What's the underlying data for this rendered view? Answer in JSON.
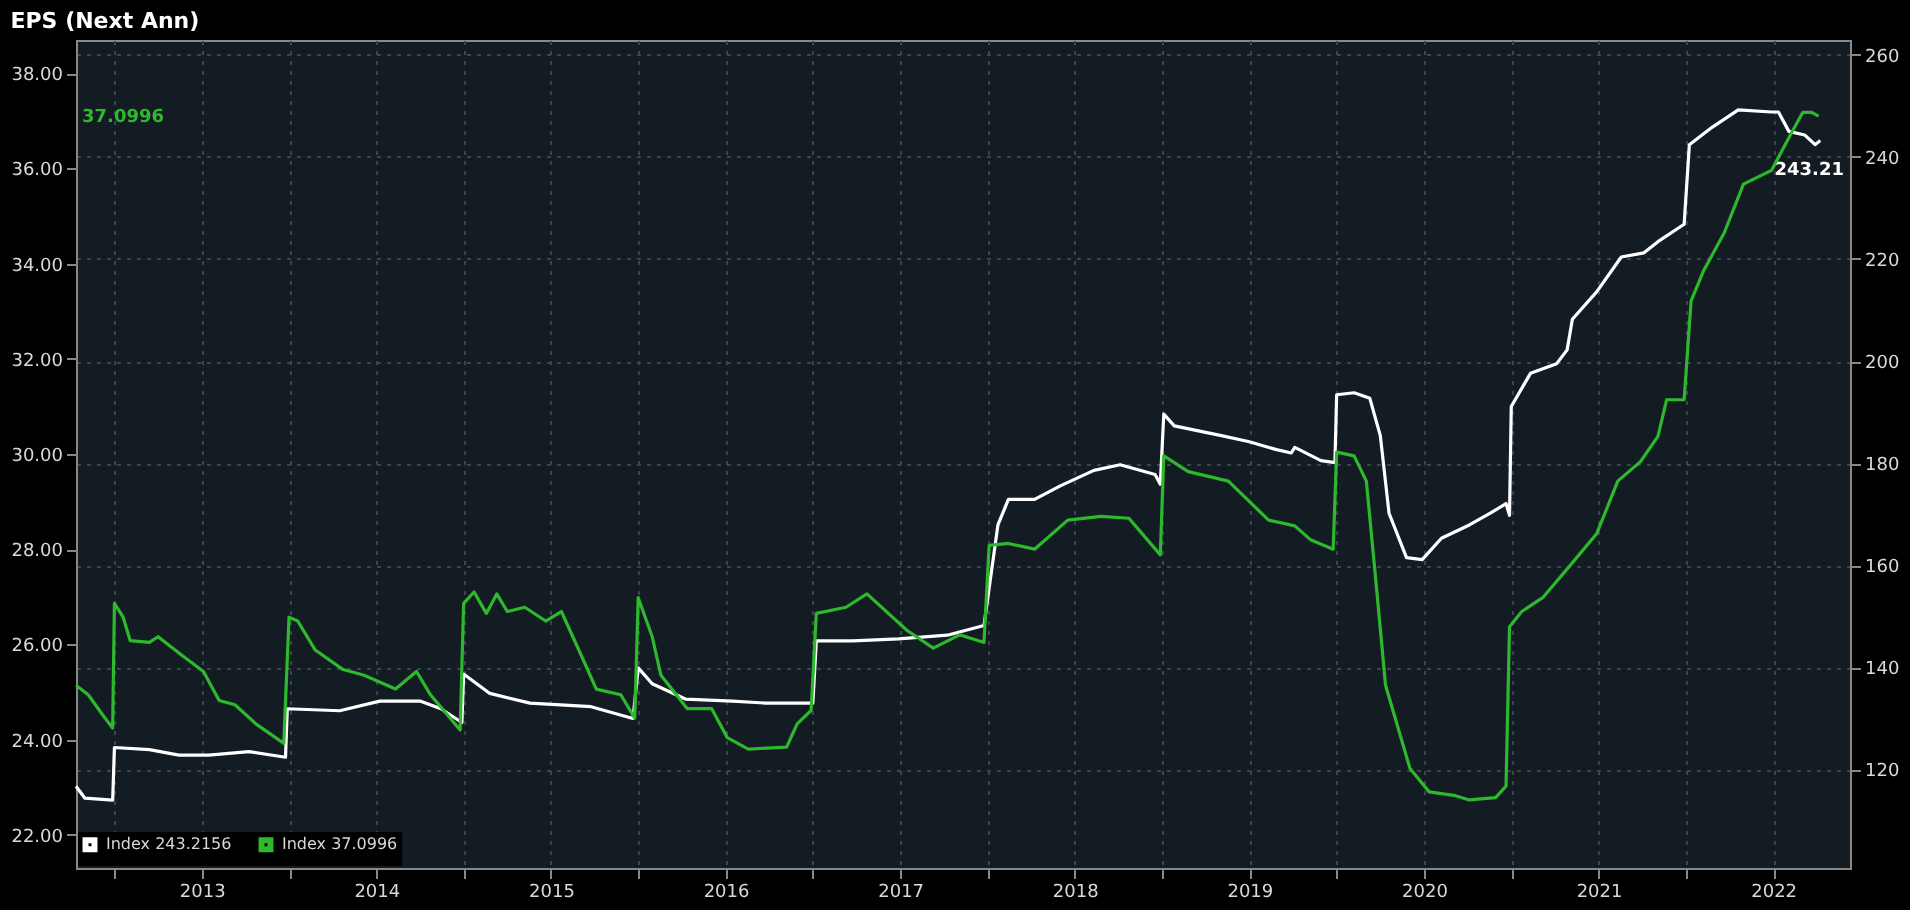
{
  "chart_data": {
    "type": "line",
    "title": "EPS (Next Ann)",
    "xlim": [
      2012.78,
      2022.94
    ],
    "xticks": [
      {
        "value": 2013,
        "label": null
      },
      {
        "value": 2013.5,
        "label": "2013"
      },
      {
        "value": 2014,
        "label": null
      },
      {
        "value": 2014.5,
        "label": "2014"
      },
      {
        "value": 2015,
        "label": null
      },
      {
        "value": 2015.5,
        "label": "2015"
      },
      {
        "value": 2016,
        "label": null
      },
      {
        "value": 2016.5,
        "label": "2016"
      },
      {
        "value": 2017,
        "label": null
      },
      {
        "value": 2017.5,
        "label": "2017"
      },
      {
        "value": 2018,
        "label": null
      },
      {
        "value": 2018.5,
        "label": "2018"
      },
      {
        "value": 2019,
        "label": null
      },
      {
        "value": 2019.5,
        "label": "2019"
      },
      {
        "value": 2020,
        "label": null
      },
      {
        "value": 2020.5,
        "label": "2020"
      },
      {
        "value": 2021,
        "label": null
      },
      {
        "value": 2021.5,
        "label": "2021"
      },
      {
        "value": 2022,
        "label": null
      },
      {
        "value": 2022.5,
        "label": "2022"
      }
    ],
    "ylim": [
      21.3,
      38.7
    ],
    "yticks": [
      {
        "value": 22,
        "label": "22.00"
      },
      {
        "value": 24,
        "label": "24.00"
      },
      {
        "value": 26,
        "label": "26.00"
      },
      {
        "value": 28,
        "label": "28.00"
      },
      {
        "value": 30,
        "label": "30.00"
      },
      {
        "value": 32,
        "label": "32.00"
      },
      {
        "value": 34,
        "label": "34.00"
      },
      {
        "value": 36,
        "label": "36.00"
      },
      {
        "value": 38,
        "label": "38.00"
      }
    ],
    "y2lim": [
      100.7,
      262.9
    ],
    "y2ticks": [
      120,
      140,
      160,
      180,
      200,
      220,
      240,
      260
    ],
    "grid": true,
    "legend": "bottom left",
    "line_style": "solid",
    "annotations": [
      "243.21",
      "37.0996"
    ],
    "series": [
      {
        "name": "Index 243.2156",
        "color": "#ffffff",
        "axis": "y2",
        "x": [
          2012.78,
          2012.83,
          2012.99,
          2013.0,
          2013.2,
          2013.37,
          2013.54,
          2013.77,
          2013.98,
          2013.99,
          2014.29,
          2014.52,
          2014.75,
          2014.87,
          2014.99,
          2015.0,
          2015.15,
          2015.38,
          2015.73,
          2015.97,
          2016.0,
          2016.08,
          2016.27,
          2016.54,
          2016.73,
          2017.0,
          2017.02,
          2017.23,
          2017.49,
          2017.77,
          2017.98,
          2018.06,
          2018.12,
          2018.27,
          2018.42,
          2018.61,
          2018.76,
          2018.96,
          2018.99,
          2019.01,
          2019.07,
          2019.34,
          2019.5,
          2019.65,
          2019.74,
          2019.76,
          2019.91,
          2019.99,
          2020.0,
          2020.1,
          2020.19,
          2020.25,
          2020.3,
          2020.4,
          2020.49,
          2020.6,
          2020.76,
          2020.88,
          2020.97,
          2020.99,
          2021.0,
          2021.11,
          2021.26,
          2021.32,
          2021.35,
          2021.49,
          2021.63,
          2021.76,
          2021.84,
          2021.99,
          2022.02,
          2022.15,
          2022.3,
          2022.49,
          2022.53,
          2022.59,
          2022.68,
          2022.74,
          2022.77
        ],
        "values": [
          116.7,
          114.4,
          114.0,
          124.3,
          123.9,
          122.8,
          122.8,
          123.5,
          122.4,
          131.9,
          131.5,
          133.4,
          133.4,
          131.9,
          129.2,
          138.7,
          134.9,
          133.0,
          132.3,
          130.0,
          139.9,
          136.8,
          133.8,
          133.4,
          133.0,
          133.0,
          145.2,
          145.2,
          145.6,
          146.3,
          148.2,
          167.9,
          172.9,
          172.9,
          175.6,
          178.6,
          179.7,
          177.8,
          175.9,
          189.6,
          187.3,
          185.4,
          184.2,
          182.7,
          182.0,
          183.1,
          180.5,
          180.1,
          193.4,
          193.8,
          192.7,
          185.4,
          170.2,
          161.5,
          161.1,
          165.3,
          167.9,
          170.2,
          172.1,
          169.8,
          191.1,
          197.6,
          199.5,
          202.2,
          208.2,
          213.6,
          220.4,
          221.2,
          223.4,
          226.8,
          242.4,
          245.8,
          249.2,
          248.8,
          248.8,
          245.0,
          244.3,
          242.4,
          243.2
        ]
      },
      {
        "name": "Index 37.0996",
        "color": "#2db82d",
        "axis": "y",
        "x": [
          2012.78,
          2012.85,
          2012.93,
          2012.99,
          2013.0,
          2013.05,
          2013.09,
          2013.2,
          2013.25,
          2013.39,
          2013.51,
          2013.6,
          2013.69,
          2013.81,
          2013.97,
          2014.0,
          2014.05,
          2014.15,
          2014.31,
          2014.43,
          2014.61,
          2014.73,
          2014.81,
          2014.98,
          2015.0,
          2015.06,
          2015.13,
          2015.19,
          2015.25,
          2015.35,
          2015.47,
          2015.56,
          2015.65,
          2015.76,
          2015.9,
          2015.98,
          2016.0,
          2016.08,
          2016.13,
          2016.28,
          2016.42,
          2016.51,
          2016.63,
          2016.85,
          2016.91,
          2016.99,
          2017.02,
          2017.19,
          2017.31,
          2017.54,
          2017.69,
          2017.84,
          2017.98,
          2018.01,
          2018.12,
          2018.27,
          2018.46,
          2018.65,
          2018.81,
          2018.99,
          2019.01,
          2019.15,
          2019.38,
          2019.61,
          2019.76,
          2019.85,
          2019.98,
          2020.0,
          2020.1,
          2020.17,
          2020.22,
          2020.28,
          2020.42,
          2020.53,
          2020.68,
          2020.76,
          2020.91,
          2020.97,
          2020.99,
          2021.06,
          2021.18,
          2021.34,
          2021.49,
          2021.61,
          2021.74,
          2021.84,
          2021.89,
          2021.99,
          2022.03,
          2022.1,
          2022.22,
          2022.33,
          2022.49,
          2022.61,
          2022.67,
          2022.72,
          2022.76
        ],
        "values": [
          25.14,
          24.94,
          24.53,
          24.24,
          26.86,
          26.57,
          26.08,
          26.04,
          26.16,
          25.76,
          25.43,
          24.82,
          24.73,
          24.33,
          23.92,
          26.57,
          26.49,
          25.88,
          25.47,
          25.35,
          25.06,
          25.43,
          24.94,
          24.2,
          26.86,
          27.1,
          26.65,
          27.06,
          26.69,
          26.78,
          26.49,
          26.69,
          25.96,
          25.06,
          24.94,
          24.45,
          26.98,
          26.16,
          25.35,
          24.65,
          24.65,
          24.04,
          23.8,
          23.84,
          24.33,
          24.61,
          26.65,
          26.78,
          27.06,
          26.29,
          25.92,
          26.2,
          26.04,
          28.08,
          28.12,
          28.0,
          28.61,
          28.69,
          28.65,
          27.88,
          29.96,
          29.63,
          29.43,
          28.61,
          28.49,
          28.2,
          28.0,
          30.04,
          29.96,
          29.43,
          27.51,
          25.14,
          23.39,
          22.9,
          22.82,
          22.73,
          22.78,
          23.02,
          26.37,
          26.69,
          26.98,
          27.67,
          28.33,
          29.43,
          29.84,
          30.37,
          31.14,
          31.14,
          33.22,
          33.84,
          34.65,
          35.67,
          35.96,
          36.78,
          37.18,
          37.18,
          37.0996
        ]
      }
    ]
  }
}
